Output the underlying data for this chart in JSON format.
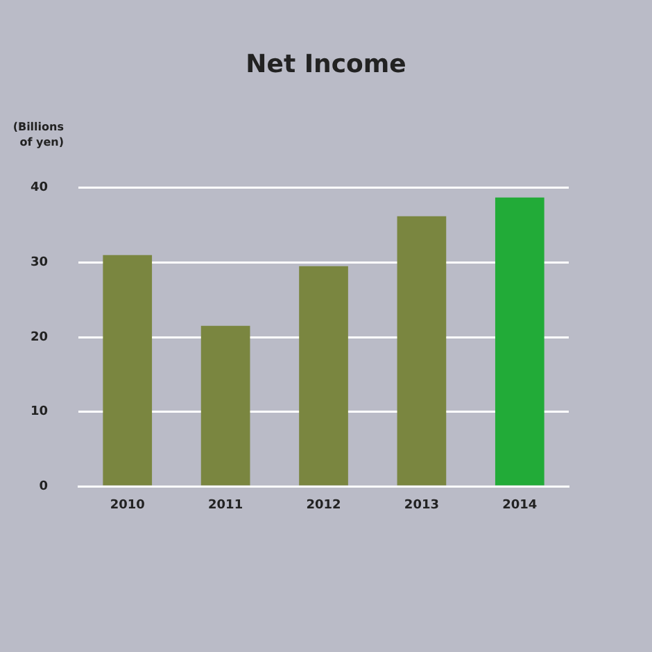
{
  "chart_data": {
    "type": "bar",
    "title": "Net Income",
    "ylabel": "(Billions of yen)",
    "categories": [
      "2010",
      "2011",
      "2012",
      "2013",
      "2014"
    ],
    "values": [
      31.0,
      21.5,
      29.5,
      36.2,
      38.7
    ],
    "colors": [
      "#7a8640",
      "#7a8640",
      "#7a8640",
      "#7a8640",
      "#22ab38"
    ],
    "ylim": [
      0,
      40
    ],
    "yticks": [
      0,
      10,
      20,
      30,
      40
    ],
    "grid": "y"
  }
}
